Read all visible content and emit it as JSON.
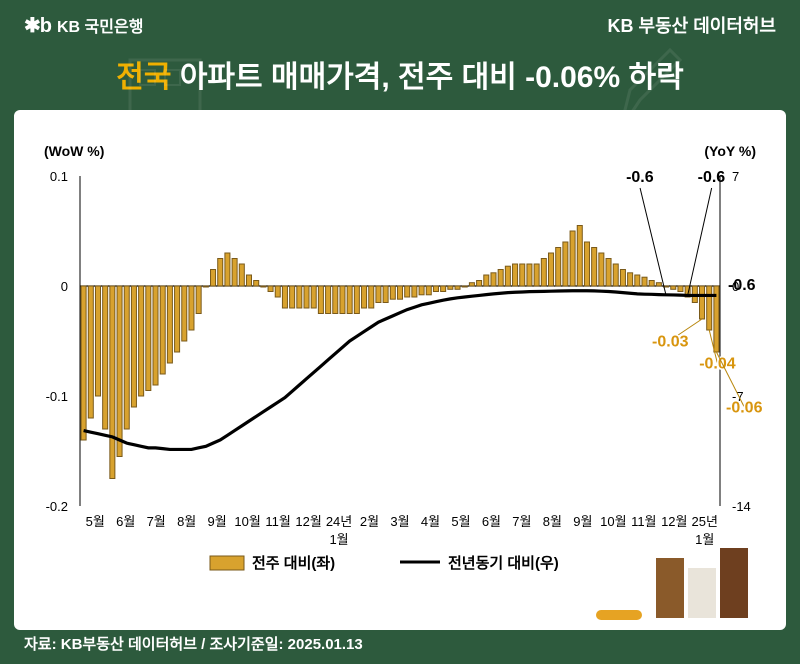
{
  "header": {
    "bank_logo_mark": "✱b",
    "bank_name": "KB 국민은행",
    "right_label": "KB 부동산 데이터허브"
  },
  "title": {
    "highlight": "전국",
    "rest": " 아파트 매매가격, 전주 대비 -0.06% 하락"
  },
  "chart": {
    "type": "bar+line",
    "background_color": "#ffffff",
    "grid_color": "#e0e0e0",
    "bar_fill": "#d8a22e",
    "bar_stroke": "#7a5a1a",
    "line_color": "#000000",
    "left_axis": {
      "label": "(WoW %)",
      "min": -0.2,
      "max": 0.1,
      "ticks": [
        0.1,
        0.0,
        -0.1,
        -0.2
      ]
    },
    "right_axis": {
      "label": "(YoY %)",
      "min": -14,
      "max": 7,
      "ticks": [
        7,
        0,
        -7,
        -14
      ]
    },
    "x_labels_top": [
      "5월",
      "6월",
      "7월",
      "8월",
      "9월",
      "10월",
      "11월",
      "12월",
      "24년",
      "2월",
      "3월",
      "4월",
      "5월",
      "6월",
      "7월",
      "8월",
      "9월",
      "10월",
      "11월",
      "12월",
      "25년"
    ],
    "x_labels_bottom": {
      "8": "1월",
      "20": "1월"
    },
    "bars_wow": [
      -0.14,
      -0.12,
      -0.1,
      -0.13,
      -0.175,
      -0.155,
      -0.13,
      -0.11,
      -0.1,
      -0.095,
      -0.09,
      -0.08,
      -0.07,
      -0.06,
      -0.05,
      -0.04,
      -0.025,
      0.0,
      0.015,
      0.025,
      0.03,
      0.025,
      0.02,
      0.01,
      0.005,
      0.0,
      -0.005,
      -0.01,
      -0.02,
      -0.02,
      -0.02,
      -0.02,
      -0.02,
      -0.025,
      -0.025,
      -0.025,
      -0.025,
      -0.025,
      -0.025,
      -0.02,
      -0.02,
      -0.015,
      -0.015,
      -0.012,
      -0.012,
      -0.01,
      -0.01,
      -0.008,
      -0.008,
      -0.005,
      -0.005,
      -0.003,
      -0.003,
      0.0,
      0.003,
      0.005,
      0.01,
      0.012,
      0.015,
      0.018,
      0.02,
      0.02,
      0.02,
      0.02,
      0.025,
      0.03,
      0.035,
      0.04,
      0.05,
      0.055,
      0.04,
      0.035,
      0.03,
      0.025,
      0.02,
      0.015,
      0.012,
      0.01,
      0.008,
      0.005,
      0.003,
      0.0,
      -0.003,
      -0.005,
      -0.01,
      -0.015,
      -0.03,
      -0.04,
      -0.06
    ],
    "line_yoy": [
      -9.2,
      -9.3,
      -9.4,
      -9.5,
      -9.6,
      -9.8,
      -10.0,
      -10.1,
      -10.2,
      -10.3,
      -10.3,
      -10.35,
      -10.4,
      -10.4,
      -10.4,
      -10.4,
      -10.3,
      -10.2,
      -10.0,
      -9.8,
      -9.5,
      -9.2,
      -8.9,
      -8.6,
      -8.3,
      -8.0,
      -7.7,
      -7.4,
      -7.1,
      -6.7,
      -6.3,
      -5.9,
      -5.5,
      -5.1,
      -4.7,
      -4.3,
      -3.9,
      -3.5,
      -3.2,
      -2.9,
      -2.6,
      -2.3,
      -2.1,
      -1.9,
      -1.7,
      -1.5,
      -1.35,
      -1.2,
      -1.1,
      -1.0,
      -0.9,
      -0.82,
      -0.75,
      -0.7,
      -0.65,
      -0.6,
      -0.55,
      -0.5,
      -0.46,
      -0.42,
      -0.4,
      -0.38,
      -0.36,
      -0.35,
      -0.34,
      -0.33,
      -0.32,
      -0.31,
      -0.3,
      -0.3,
      -0.3,
      -0.31,
      -0.33,
      -0.35,
      -0.38,
      -0.42,
      -0.46,
      -0.5,
      -0.52,
      -0.53,
      -0.55,
      -0.56,
      -0.57,
      -0.58,
      -0.6,
      -0.6,
      -0.6,
      -0.6,
      -0.6
    ],
    "annotations": {
      "black": [
        {
          "text": "-0.6",
          "i": 81
        },
        {
          "text": "-0.6",
          "i": 84
        },
        {
          "text": "-0.6",
          "i": 88
        }
      ],
      "gold": [
        {
          "text": "-0.03",
          "i": 86
        },
        {
          "text": "-0.04",
          "i": 87
        },
        {
          "text": "-0.06",
          "i": 88
        }
      ]
    },
    "legend": {
      "bar": "전주 대비(좌)",
      "line": "전년동기 대비(우)"
    }
  },
  "footer": {
    "source": "자료: KB부동산 데이터허브 / 조사기준일: 2025.01.13"
  },
  "colors": {
    "page_bg": "#2d5a3d",
    "title_highlight": "#f0b000",
    "white": "#ffffff"
  }
}
